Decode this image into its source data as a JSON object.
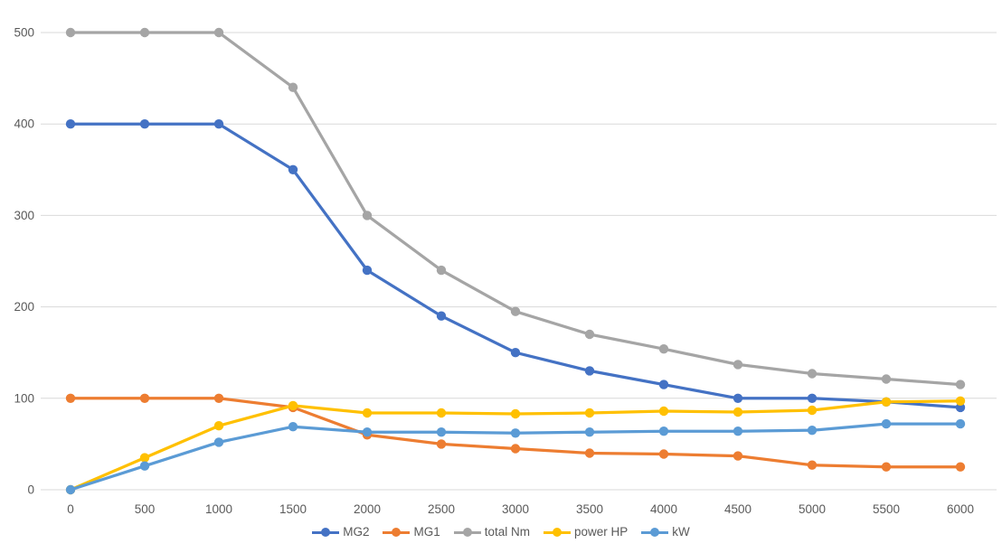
{
  "chart": {
    "background_color": "#ffffff",
    "text_color": "#595959",
    "gridline_color": "#d9d9d9"
  },
  "chart_data": {
    "type": "line",
    "title": "",
    "xlabel": "",
    "ylabel": "",
    "x": [
      "0",
      "500",
      "1000",
      "1500",
      "2000",
      "2500",
      "3000",
      "3500",
      "4000",
      "4500",
      "5000",
      "5500",
      "6000"
    ],
    "yticks": [
      "0",
      "100",
      "200",
      "300",
      "400",
      "500"
    ],
    "ylim": [
      0,
      500
    ],
    "ytick_step": 100,
    "grid": true,
    "legend_position": "bottom",
    "marker_style": "circle",
    "series": [
      {
        "name": "MG2",
        "color": "#4472C4",
        "values": [
          400,
          400,
          400,
          350,
          240,
          190,
          150,
          130,
          115,
          100,
          100,
          96,
          90
        ]
      },
      {
        "name": "MG1",
        "color": "#ED7D31",
        "values": [
          100,
          100,
          100,
          90,
          60,
          50,
          45,
          40,
          39,
          37,
          27,
          25,
          25
        ]
      },
      {
        "name": "total Nm",
        "color": "#A5A5A5",
        "values": [
          500,
          500,
          500,
          440,
          300,
          240,
          195,
          170,
          154,
          137,
          127,
          121,
          115
        ]
      },
      {
        "name": "power HP",
        "color": "#FFC000",
        "values": [
          0,
          35,
          70,
          92,
          84,
          84,
          83,
          84,
          86,
          85,
          87,
          96,
          97
        ]
      },
      {
        "name": "kW",
        "color": "#5B9BD5",
        "values": [
          0,
          26,
          52,
          69,
          63,
          63,
          62,
          63,
          64,
          64,
          65,
          72,
          72
        ]
      }
    ]
  }
}
